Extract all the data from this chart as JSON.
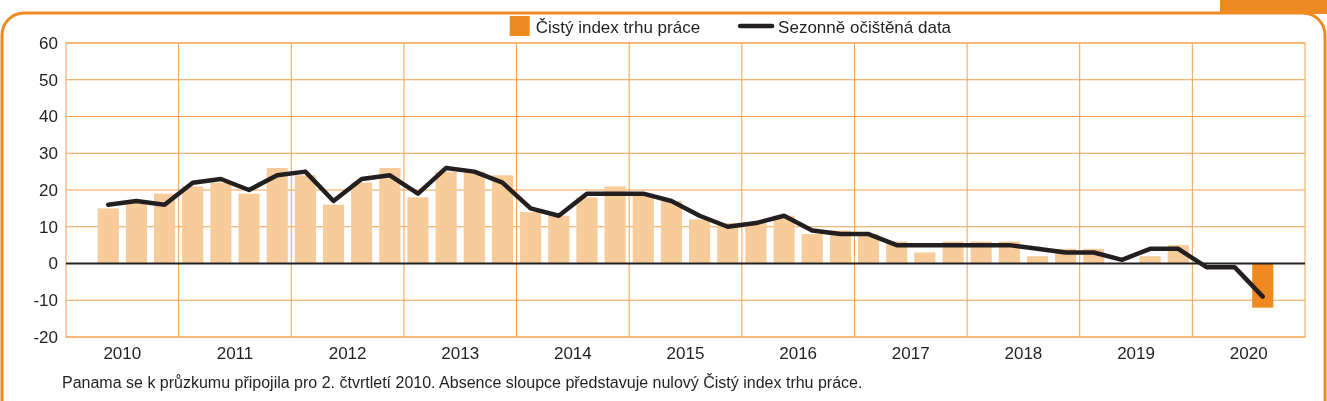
{
  "chart_data": {
    "type": "bar",
    "x": [
      2010.375,
      2010.625,
      2010.875,
      2011.125,
      2011.375,
      2011.625,
      2011.875,
      2012.125,
      2012.375,
      2012.625,
      2012.875,
      2013.125,
      2013.375,
      2013.625,
      2013.875,
      2014.125,
      2014.375,
      2014.625,
      2014.875,
      2015.125,
      2015.375,
      2015.625,
      2015.875,
      2016.125,
      2016.375,
      2016.625,
      2016.875,
      2017.125,
      2017.375,
      2017.625,
      2017.875,
      2018.125,
      2018.375,
      2018.625,
      2018.875,
      2019.125,
      2019.375,
      2019.625,
      2019.875,
      2020.125,
      2020.375,
      2020.625
    ],
    "series": [
      {
        "name": "Čistý index trhu práce",
        "color": "#ee8a1f",
        "colors": [
          "#f8cb9b",
          "#f8cb9b",
          "#f8cb9b",
          "#f8cb9b",
          "#f8cb9b",
          "#f8cb9b",
          "#f8cb9b",
          "#f8cb9b",
          "#f8cb9b",
          "#f8cb9b",
          "#f8cb9b",
          "#f8cb9b",
          "#f8cb9b",
          "#f8cb9b",
          "#f8cb9b",
          "#f8cb9b",
          "#f8cb9b",
          "#f8cb9b",
          "#f8cb9b",
          "#f8cb9b",
          "#f8cb9b",
          "#f8cb9b",
          "#f8cb9b",
          "#f8cb9b",
          "#f8cb9b",
          "#f8cb9b",
          "#f8cb9b",
          "#f8cb9b",
          "#f8cb9b",
          "#f8cb9b",
          "#f8cb9b",
          "#f8cb9b",
          "#f8cb9b",
          "#f8cb9b",
          "#f8cb9b",
          "#f8cb9b",
          "#f8cb9b",
          "#f8cb9b",
          "#f8cb9b",
          "#f8cb9b",
          "#f8cb9b",
          "#ee8a1f"
        ],
        "values": [
          15,
          17,
          19,
          21,
          22,
          19,
          26,
          24,
          16,
          22,
          26,
          18,
          25,
          25,
          24,
          14,
          13,
          18,
          21,
          19,
          17,
          12,
          11,
          11,
          13,
          8,
          9,
          8,
          6,
          3,
          6,
          6,
          6,
          2,
          4,
          4,
          0,
          2,
          5,
          0,
          0,
          -12
        ]
      },
      {
        "name": "Sezonně očištěná data",
        "type": "line",
        "color": "#231f20",
        "values": [
          16,
          17,
          16,
          22,
          23,
          20,
          24,
          25,
          17,
          23,
          24,
          19,
          26,
          25,
          22,
          15,
          13,
          19,
          19,
          19,
          17,
          13,
          10,
          11,
          13,
          9,
          8,
          8,
          5,
          5,
          5,
          5,
          5,
          4,
          3,
          3,
          1,
          4,
          4,
          -1,
          -1,
          -9
        ]
      }
    ],
    "xlim": [
      2010,
      2021
    ],
    "xticks": [
      {
        "value": 2010.5,
        "label": "2010"
      },
      {
        "value": 2011,
        "label": null
      },
      {
        "value": 2011.5,
        "label": "2011"
      },
      {
        "value": 2012,
        "label": null
      },
      {
        "value": 2012.5,
        "label": "2012"
      },
      {
        "value": 2013,
        "label": null
      },
      {
        "value": 2013.5,
        "label": "2013"
      },
      {
        "value": 2014,
        "label": null
      },
      {
        "value": 2014.5,
        "label": "2014"
      },
      {
        "value": 2015,
        "label": null
      },
      {
        "value": 2015.5,
        "label": "2015"
      },
      {
        "value": 2016,
        "label": null
      },
      {
        "value": 2016.5,
        "label": "2016"
      },
      {
        "value": 2017,
        "label": null
      },
      {
        "value": 2017.5,
        "label": "2017"
      },
      {
        "value": 2018,
        "label": null
      },
      {
        "value": 2018.5,
        "label": "2018"
      },
      {
        "value": 2019,
        "label": null
      },
      {
        "value": 2019.5,
        "label": "2019"
      },
      {
        "value": 2020,
        "label": null
      },
      {
        "value": 2020.5,
        "label": "2020"
      }
    ],
    "ylim": [
      -20,
      60
    ],
    "yticks": [
      -20,
      -10,
      0,
      10,
      20,
      30,
      40,
      50,
      60
    ],
    "grid": true,
    "legend": "top",
    "annotations": [
      "Panama se k průzkumu připojila pro 2. čtvrtletí 2010. Absence sloupce představuje nulový Čistý index trhu práce."
    ]
  }
}
